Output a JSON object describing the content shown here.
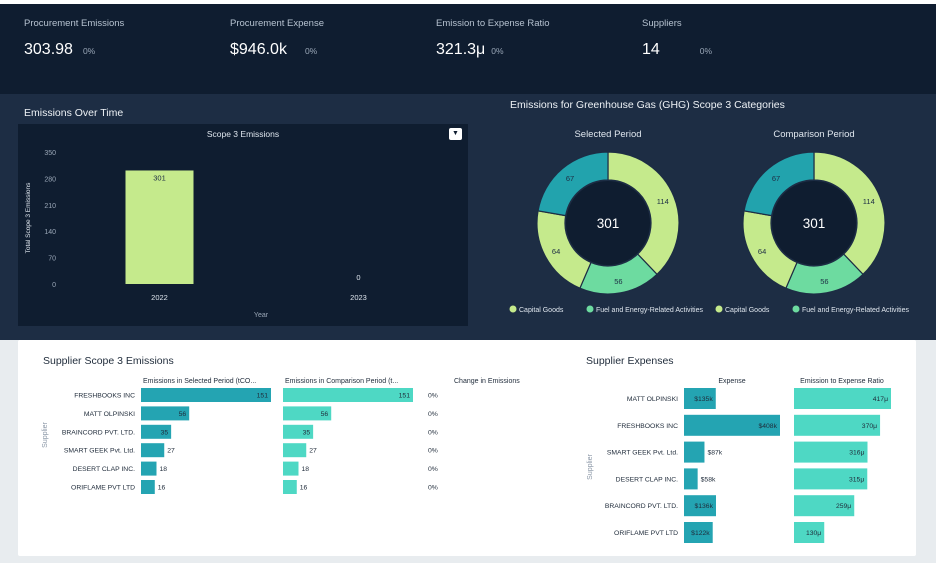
{
  "kpis": [
    {
      "label": "Procurement Emissions",
      "value": "303.98",
      "change": "0%"
    },
    {
      "label": "Procurement Expense",
      "value": "$946.0k",
      "change": "0%"
    },
    {
      "label": "Emission to Expense Ratio",
      "value": "321.3μ",
      "change": "0%"
    },
    {
      "label": "Suppliers",
      "value": "14",
      "change": "0%"
    }
  ],
  "emissions_over_time": {
    "section_title": "Emissions Over Time",
    "dropdown_icon": "chevron-down-icon",
    "chart_data": {
      "type": "bar",
      "title": "Scope 3 Emissions",
      "xlabel": "Year",
      "ylabel": "Total Scope 3 Emissions",
      "categories": [
        "2022",
        "2023"
      ],
      "values": [
        301,
        0
      ],
      "data_labels": [
        "301",
        "0"
      ],
      "ylim": [
        0,
        350
      ],
      "yticks": [
        "0",
        "70",
        "140",
        "210",
        "280",
        "350"
      ],
      "bar_color": "#c5ea8c"
    }
  },
  "ghg": {
    "section_title": "Emissions for Greenhouse Gas (GHG) Scope 3 Categories",
    "chart_data": [
      {
        "type": "pie",
        "title": "Selected Period",
        "center_label": "301",
        "slices": [
          {
            "value": 114,
            "label": "114",
            "color": "#c5ea8c"
          },
          {
            "value": 56,
            "label": "56",
            "color": "#6ddba0"
          },
          {
            "value": 64,
            "label": "64",
            "color": "#c5ea8c"
          },
          {
            "value": 67,
            "label": "67",
            "color": "#22a3ad"
          }
        ],
        "legend": [
          {
            "label": "Capital Goods",
            "color": "#c5ea8c"
          },
          {
            "label": "Fuel and Energy-Related Activities",
            "color": "#6ddba0"
          }
        ]
      },
      {
        "type": "pie",
        "title": "Comparison Period",
        "center_label": "301",
        "slices": [
          {
            "value": 114,
            "label": "114",
            "color": "#c5ea8c"
          },
          {
            "value": 56,
            "label": "56",
            "color": "#6ddba0"
          },
          {
            "value": 64,
            "label": "64",
            "color": "#c5ea8c"
          },
          {
            "value": 67,
            "label": "67",
            "color": "#22a3ad"
          }
        ],
        "legend": [
          {
            "label": "Capital Goods",
            "color": "#c5ea8c"
          },
          {
            "label": "Fuel and Energy-Related Activities",
            "color": "#6ddba0"
          }
        ]
      }
    ]
  },
  "supplier_emissions": {
    "section_title": "Supplier Scope 3 Emissions",
    "chart_data": {
      "type": "bar",
      "ylabel": "Supplier",
      "categories": [
        "FRESHBOOKS INC",
        "MATT OLPINSKI",
        "BRAINCORD PVT. LTD.",
        "SMART GEEK Pvt. Ltd.",
        "DESERT CLAP INC.",
        "ORIFLAME PVT LTD"
      ],
      "series": [
        {
          "name": "Emissions in Selected Period (tCO...",
          "values": [
            151,
            56,
            35,
            27,
            18,
            16
          ],
          "color": "#24a4b2"
        },
        {
          "name": "Emissions in Comparison Period (t...",
          "values": [
            151,
            56,
            35,
            27,
            18,
            16
          ],
          "color": "#4ed8c4"
        },
        {
          "name": "Change in Emissions",
          "labels": [
            "0%",
            "0%",
            "0%",
            "0%",
            "0%",
            "0%"
          ]
        }
      ],
      "xlim": [
        0,
        151
      ]
    }
  },
  "supplier_expenses": {
    "section_title": "Supplier Expenses",
    "chart_data": {
      "type": "bar",
      "ylabel": "Supplier",
      "categories": [
        "MATT OLPINSKI",
        "FRESHBOOKS INC",
        "SMART GEEK Pvt. Ltd.",
        "DESERT CLAP INC.",
        "BRAINCORD PVT. LTD.",
        "ORIFLAME PVT LTD"
      ],
      "series": [
        {
          "name": "Expense",
          "values": [
            135,
            408,
            87,
            58,
            136,
            122
          ],
          "labels": [
            "$135k",
            "$408k",
            "$87k",
            "$58k",
            "$136k",
            "$122k"
          ],
          "color": "#24a4b2"
        },
        {
          "name": "Emission to Expense Ratio",
          "values": [
            417,
            370,
            316,
            315,
            259,
            130
          ],
          "labels": [
            "417μ",
            "370μ",
            "316μ",
            "315μ",
            "259μ",
            "130μ"
          ],
          "color": "#4ed8c4"
        }
      ]
    }
  }
}
